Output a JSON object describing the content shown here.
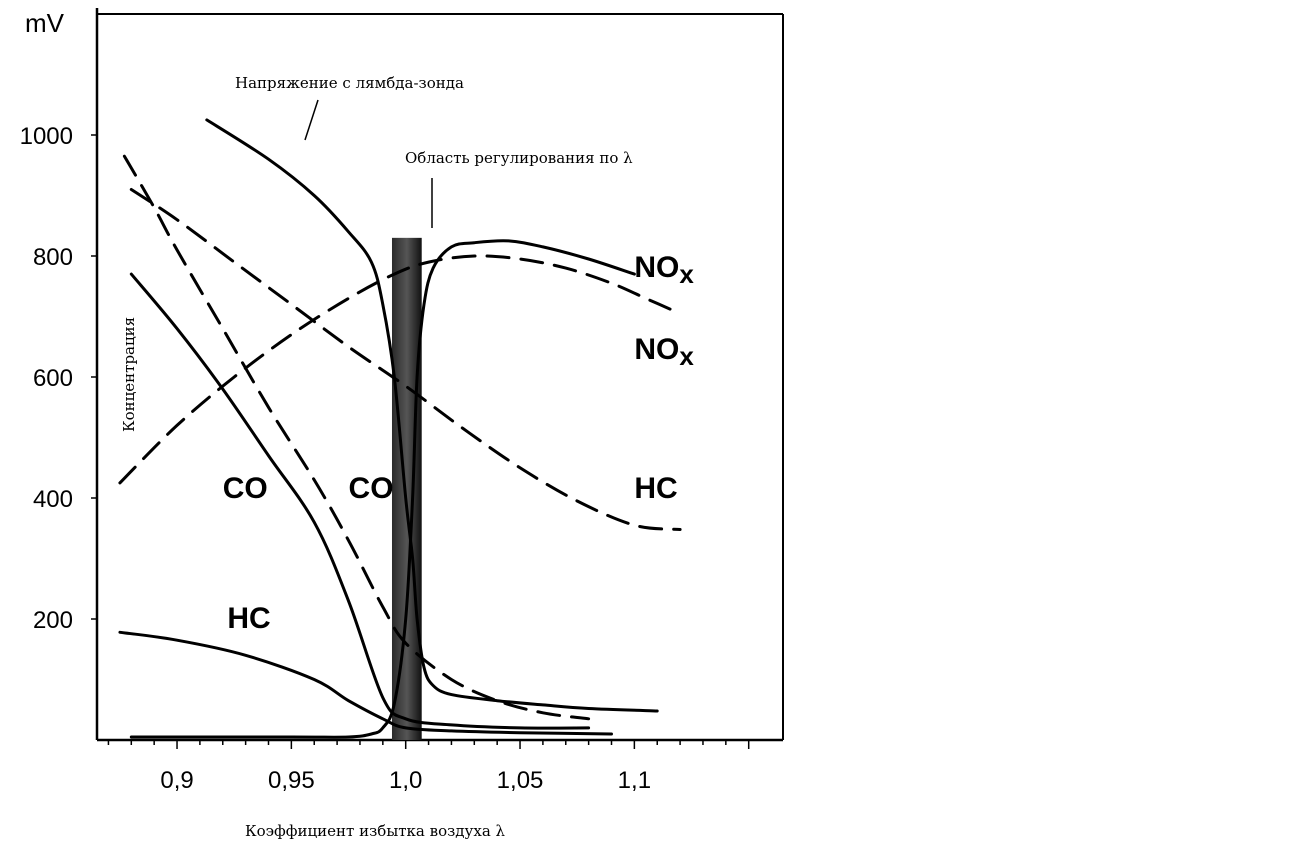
{
  "chart_data": {
    "type": "line",
    "title": "",
    "y_unit_label": "mV",
    "xlabel": "Коэффициент избытка воздуха  λ",
    "ylabel": "Концентрация",
    "xlim": [
      0.865,
      1.165
    ],
    "ylim": [
      0,
      1200
    ],
    "x_ticks": [
      0.9,
      0.95,
      1.0,
      1.05,
      1.1
    ],
    "x_tick_labels": [
      "0,9",
      "0,95",
      "1,0",
      "1,05",
      "1,1"
    ],
    "y_ticks": [
      200,
      400,
      600,
      800,
      1000
    ],
    "y_tick_labels": [
      "200",
      "400",
      "600",
      "800",
      "1000"
    ],
    "control_band": {
      "x_from": 0.994,
      "x_to": 1.007,
      "y_top": 830
    },
    "annotations": {
      "lambda_voltage": "Напряжение с лямбда-зонда",
      "control_region": "Область регулирования по λ"
    },
    "series": [
      {
        "name": "Напряжение с лямбда-зонда",
        "style": "solid",
        "x": [
          0.913,
          0.94,
          0.96,
          0.975,
          0.985,
          0.99,
          0.995,
          1.0,
          1.003,
          1.005,
          1.008,
          1.012,
          1.02,
          1.04,
          1.06,
          1.08,
          1.11
        ],
        "y": [
          1025,
          960,
          900,
          840,
          790,
          720,
          600,
          400,
          300,
          200,
          120,
          90,
          75,
          65,
          58,
          52,
          48
        ]
      },
      {
        "name": "NOx",
        "style": "solid",
        "x": [
          0.88,
          0.95,
          0.975,
          0.985,
          0.99,
          0.995,
          1.0,
          1.003,
          1.005,
          1.008,
          1.012,
          1.02,
          1.03,
          1.045,
          1.06,
          1.08,
          1.1
        ],
        "y": [
          5,
          5,
          5,
          10,
          20,
          60,
          200,
          400,
          600,
          720,
          780,
          815,
          822,
          825,
          815,
          795,
          770
        ]
      },
      {
        "name": "CO",
        "style": "solid",
        "x": [
          0.88,
          0.9,
          0.92,
          0.94,
          0.96,
          0.975,
          0.99,
          1.0,
          1.02,
          1.05,
          1.08
        ],
        "y": [
          770,
          680,
          580,
          470,
          360,
          230,
          70,
          35,
          25,
          20,
          20
        ]
      },
      {
        "name": "HC",
        "style": "solid",
        "x": [
          0.875,
          0.9,
          0.93,
          0.96,
          0.975,
          0.99,
          1.0,
          1.02,
          1.05,
          1.09
        ],
        "y": [
          178,
          165,
          140,
          100,
          65,
          35,
          20,
          15,
          12,
          10
        ]
      },
      {
        "name": "NOx",
        "style": "dashed",
        "x": [
          0.875,
          0.9,
          0.925,
          0.95,
          0.975,
          0.995,
          1.01,
          1.03,
          1.05,
          1.07,
          1.09,
          1.105,
          1.12
        ],
        "y": [
          425,
          520,
          600,
          670,
          730,
          770,
          790,
          800,
          795,
          780,
          755,
          730,
          705
        ]
      },
      {
        "name": "HC",
        "style": "dashed",
        "x": [
          0.88,
          0.9,
          0.925,
          0.95,
          0.975,
          1.0,
          1.025,
          1.05,
          1.075,
          1.1,
          1.12
        ],
        "y": [
          910,
          860,
          790,
          720,
          650,
          585,
          515,
          450,
          395,
          355,
          348
        ]
      },
      {
        "name": "CO",
        "style": "dashed",
        "x": [
          0.877,
          0.89,
          0.9,
          0.92,
          0.94,
          0.96,
          0.975,
          0.99,
          1.0,
          1.02,
          1.04,
          1.06,
          1.08
        ],
        "y": [
          965,
          880,
          810,
          680,
          550,
          430,
          330,
          220,
          160,
          100,
          65,
          45,
          35
        ]
      }
    ],
    "series_labels": [
      {
        "text": "NOx",
        "x": 1.1,
        "y": 765
      },
      {
        "text": "NOx",
        "x": 1.1,
        "y": 630
      },
      {
        "text": "HC",
        "x": 1.1,
        "y": 400
      },
      {
        "text": "CO",
        "x": 0.92,
        "y": 400
      },
      {
        "text": "CO",
        "x": 0.975,
        "y": 400
      },
      {
        "text": "HC",
        "x": 0.922,
        "y": 185
      }
    ]
  }
}
